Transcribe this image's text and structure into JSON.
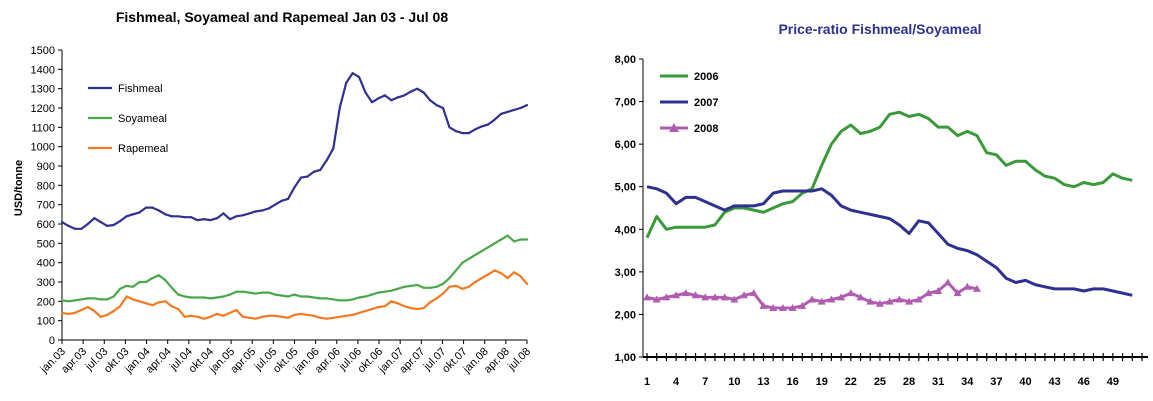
{
  "chart_data": [
    {
      "type": "line",
      "title": "Fishmeal, Soyameal and Rapemeal Jan 03 - Jul 08",
      "ylabel": "USD/tonne",
      "xlabel": "",
      "ylim": [
        0,
        1500
      ],
      "yticks": [
        0,
        100,
        200,
        300,
        400,
        500,
        600,
        700,
        800,
        900,
        1000,
        1100,
        1200,
        1300,
        1400,
        1500
      ],
      "xtick_labels": [
        "jan.03",
        "apr.03",
        "jul.03",
        "okt.03",
        "jan.04",
        "apr.04",
        "jul.04",
        "okt.04",
        "jan.05",
        "apr.05",
        "jul.05",
        "okt.05",
        "jan.06",
        "apr.06",
        "jul.06",
        "okt.06",
        "jan.07",
        "apr.07",
        "jul.07",
        "okt.07",
        "jan.08",
        "apr.08",
        "jul.08"
      ],
      "grid": false,
      "legend_position": "top-left",
      "series": [
        {
          "name": "Fishmeal",
          "color": "#2e3192",
          "values": [
            610,
            590,
            575,
            575,
            600,
            630,
            610,
            590,
            595,
            615,
            640,
            650,
            660,
            685,
            685,
            670,
            650,
            640,
            640,
            635,
            635,
            620,
            625,
            620,
            630,
            655,
            625,
            640,
            645,
            655,
            665,
            670,
            680,
            700,
            720,
            730,
            790,
            840,
            845,
            870,
            880,
            930,
            990,
            1200,
            1330,
            1380,
            1360,
            1280,
            1230,
            1250,
            1265,
            1240,
            1255,
            1265,
            1285,
            1300,
            1280,
            1240,
            1215,
            1200,
            1100,
            1080,
            1070,
            1070,
            1090,
            1105,
            1115,
            1140,
            1170,
            1180,
            1190,
            1200,
            1215
          ]
        },
        {
          "name": "Soyameal",
          "color": "#4aa84a",
          "values": [
            205,
            200,
            205,
            210,
            215,
            215,
            210,
            210,
            225,
            265,
            280,
            275,
            300,
            300,
            320,
            335,
            310,
            270,
            235,
            225,
            220,
            220,
            220,
            215,
            220,
            225,
            235,
            250,
            250,
            245,
            240,
            245,
            245,
            235,
            230,
            225,
            235,
            225,
            225,
            220,
            215,
            215,
            210,
            205,
            205,
            210,
            220,
            225,
            235,
            245,
            250,
            255,
            265,
            275,
            280,
            285,
            270,
            270,
            275,
            290,
            320,
            360,
            400,
            420,
            440,
            460,
            480,
            500,
            520,
            540,
            510,
            520,
            520
          ]
        },
        {
          "name": "Rapemeal",
          "color": "#f47920",
          "values": [
            140,
            135,
            140,
            155,
            170,
            150,
            120,
            130,
            150,
            175,
            225,
            210,
            200,
            190,
            180,
            195,
            200,
            175,
            160,
            120,
            125,
            120,
            110,
            120,
            135,
            125,
            140,
            155,
            120,
            115,
            110,
            120,
            125,
            125,
            120,
            115,
            130,
            135,
            130,
            125,
            115,
            110,
            115,
            120,
            125,
            130,
            140,
            150,
            160,
            170,
            175,
            200,
            190,
            175,
            165,
            160,
            165,
            195,
            215,
            240,
            275,
            280,
            265,
            275,
            300,
            320,
            340,
            360,
            345,
            320,
            350,
            330,
            290
          ]
        }
      ]
    },
    {
      "type": "line",
      "title": "Price-ratio Fishmeal/Soyameal",
      "xlabel": "",
      "ylabel": "",
      "ylim": [
        1,
        8
      ],
      "yticks": [
        "1,00",
        "2,00",
        "3,00",
        "4,00",
        "5,00",
        "6,00",
        "7,00",
        "8,00"
      ],
      "xtick_labels": [
        "1",
        "4",
        "7",
        "10",
        "13",
        "16",
        "19",
        "22",
        "25",
        "28",
        "31",
        "34",
        "37",
        "40",
        "43",
        "46",
        "49"
      ],
      "grid": false,
      "legend_position": "top-left",
      "series": [
        {
          "name": "2006",
          "color": "#3a9a3a",
          "values": [
            3.8,
            4.3,
            4.0,
            4.05,
            4.05,
            4.05,
            4.05,
            4.1,
            4.4,
            4.5,
            4.5,
            4.45,
            4.4,
            4.5,
            4.6,
            4.65,
            4.85,
            4.95,
            5.5,
            6.0,
            6.3,
            6.45,
            6.25,
            6.3,
            6.4,
            6.7,
            6.75,
            6.65,
            6.7,
            6.6,
            6.4,
            6.4,
            6.2,
            6.3,
            6.2,
            5.8,
            5.75,
            5.5,
            5.6,
            5.6,
            5.4,
            5.25,
            5.2,
            5.05,
            5.0,
            5.1,
            5.05,
            5.1,
            5.3,
            5.2,
            5.15
          ]
        },
        {
          "name": "2007",
          "color": "#2e3192",
          "values": [
            5.0,
            4.95,
            4.85,
            4.6,
            4.75,
            4.75,
            4.65,
            4.55,
            4.45,
            4.55,
            4.55,
            4.55,
            4.6,
            4.85,
            4.9,
            4.9,
            4.9,
            4.9,
            4.95,
            4.8,
            4.55,
            4.45,
            4.4,
            4.35,
            4.3,
            4.25,
            4.1,
            3.9,
            4.2,
            4.15,
            3.9,
            3.65,
            3.55,
            3.5,
            3.4,
            3.25,
            3.1,
            2.85,
            2.75,
            2.8,
            2.7,
            2.65,
            2.6,
            2.6,
            2.6,
            2.55,
            2.6,
            2.6,
            2.55,
            2.5,
            2.45
          ]
        },
        {
          "name": "2008",
          "color": "#b05cb0",
          "values": [
            2.4,
            2.35,
            2.4,
            2.45,
            2.5,
            2.45,
            2.4,
            2.4,
            2.4,
            2.35,
            2.45,
            2.5,
            2.2,
            2.15,
            2.15,
            2.15,
            2.2,
            2.35,
            2.3,
            2.35,
            2.4,
            2.5,
            2.4,
            2.3,
            2.25,
            2.3,
            2.35,
            2.3,
            2.35,
            2.5,
            2.55,
            2.75,
            2.5,
            2.65,
            2.6
          ]
        }
      ]
    }
  ]
}
